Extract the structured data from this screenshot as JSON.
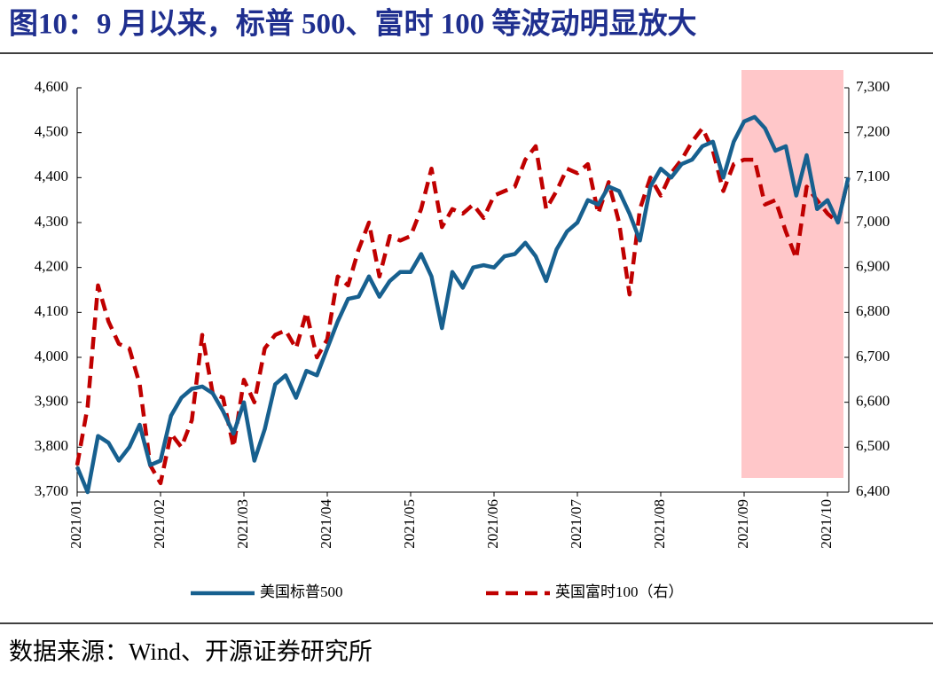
{
  "title": "图10：9 月以来，标普 500、富时 100 等波动明显放大",
  "source": "数据来源：Wind、开源证券研究所",
  "chart_data": {
    "type": "line",
    "categories": [
      "2021/01",
      null,
      null,
      null,
      null,
      null,
      null,
      null,
      "2021/02",
      null,
      null,
      null,
      null,
      null,
      null,
      null,
      "2021/03",
      null,
      null,
      null,
      null,
      null,
      null,
      null,
      "2021/04",
      null,
      null,
      null,
      null,
      null,
      null,
      null,
      "2021/05",
      null,
      null,
      null,
      null,
      null,
      null,
      null,
      "2021/06",
      null,
      null,
      null,
      null,
      null,
      null,
      null,
      "2021/07",
      null,
      null,
      null,
      null,
      null,
      null,
      null,
      "2021/08",
      null,
      null,
      null,
      null,
      null,
      null,
      null,
      "2021/09",
      null,
      null,
      null,
      null,
      null,
      null,
      null,
      "2021/10",
      null,
      null
    ],
    "series": [
      {
        "name": "美国标普500",
        "color": "#17608f",
        "dash": false,
        "values": [
          3756,
          3700,
          3825,
          3810,
          3770,
          3800,
          3850,
          3760,
          3770,
          3870,
          3910,
          3930,
          3935,
          3920,
          3880,
          3830,
          3900,
          3770,
          3840,
          3940,
          3960,
          3910,
          3970,
          3960,
          4020,
          4080,
          4130,
          4135,
          4180,
          4135,
          4170,
          4190,
          4190,
          4230,
          4180,
          4065,
          4190,
          4155,
          4200,
          4205,
          4200,
          4225,
          4230,
          4255,
          4225,
          4170,
          4240,
          4280,
          4300,
          4350,
          4340,
          4380,
          4370,
          4320,
          4260,
          4380,
          4420,
          4400,
          4430,
          4440,
          4470,
          4480,
          4400,
          4480,
          4525,
          4535,
          4510,
          4460,
          4470,
          4360,
          4450,
          4330,
          4350,
          4300,
          4400
        ]
      },
      {
        "name": "英国富时100（右）",
        "color": "#c00000",
        "dash": true,
        "axis": "y2",
        "values": [
          6460,
          6590,
          6860,
          6780,
          6730,
          6720,
          6640,
          6460,
          6420,
          6530,
          6500,
          6560,
          6750,
          6620,
          6610,
          6500,
          6650,
          6600,
          6720,
          6750,
          6760,
          6720,
          6800,
          6700,
          6740,
          6880,
          6860,
          6940,
          7000,
          6880,
          6970,
          6960,
          6970,
          7030,
          7120,
          6990,
          7030,
          7020,
          7040,
          7010,
          7060,
          7070,
          7080,
          7140,
          7170,
          7030,
          7070,
          7120,
          7110,
          7130,
          7020,
          7090,
          7000,
          6840,
          7030,
          7100,
          7060,
          7110,
          7140,
          7180,
          7210,
          7160,
          7070,
          7130,
          7140,
          7140,
          7040,
          7050,
          6980,
          6920,
          7080,
          7050,
          7020,
          7000,
          7100
        ]
      }
    ],
    "ylim": [
      3700,
      4600
    ],
    "yticks": [
      {
        "value": 3700,
        "label": "3,700"
      },
      {
        "value": 3800,
        "label": "3,800"
      },
      {
        "value": 3900,
        "label": "3,900"
      },
      {
        "value": 4000,
        "label": "4,000"
      },
      {
        "value": 4100,
        "label": "4,100"
      },
      {
        "value": 4200,
        "label": "4,200"
      },
      {
        "value": 4300,
        "label": "4,300"
      },
      {
        "value": 4400,
        "label": "4,400"
      },
      {
        "value": 4500,
        "label": "4,500"
      },
      {
        "value": 4600,
        "label": "4,600"
      }
    ],
    "y2lim": [
      6400,
      7300
    ],
    "y2ticks": [
      {
        "value": 6400,
        "label": "6,400"
      },
      {
        "value": 6500,
        "label": "6,500"
      },
      {
        "value": 6600,
        "label": "6,600"
      },
      {
        "value": 6700,
        "label": "6,700"
      },
      {
        "value": 6800,
        "label": "6,800"
      },
      {
        "value": 6900,
        "label": "6,900"
      },
      {
        "value": 7000,
        "label": "7,000"
      },
      {
        "value": 7100,
        "label": "7,100"
      },
      {
        "value": 7200,
        "label": "7,200"
      },
      {
        "value": 7300,
        "label": "7,300"
      }
    ]
  }
}
